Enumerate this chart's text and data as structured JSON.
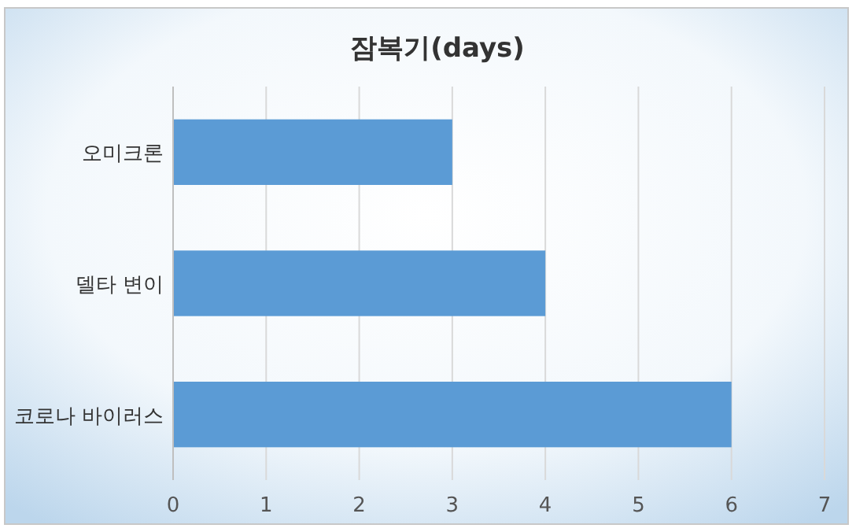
{
  "chart_data": {
    "type": "bar",
    "orientation": "horizontal",
    "title": "잠복기(days)",
    "categories": [
      "오미크론",
      "델타 변이",
      "코로나 바이러스"
    ],
    "values": [
      3,
      4,
      6
    ],
    "color": "#5b9bd5",
    "xlim": [
      0,
      7
    ],
    "xticks": [
      0,
      1,
      2,
      3,
      4,
      5,
      6,
      7
    ],
    "grid": "x"
  }
}
